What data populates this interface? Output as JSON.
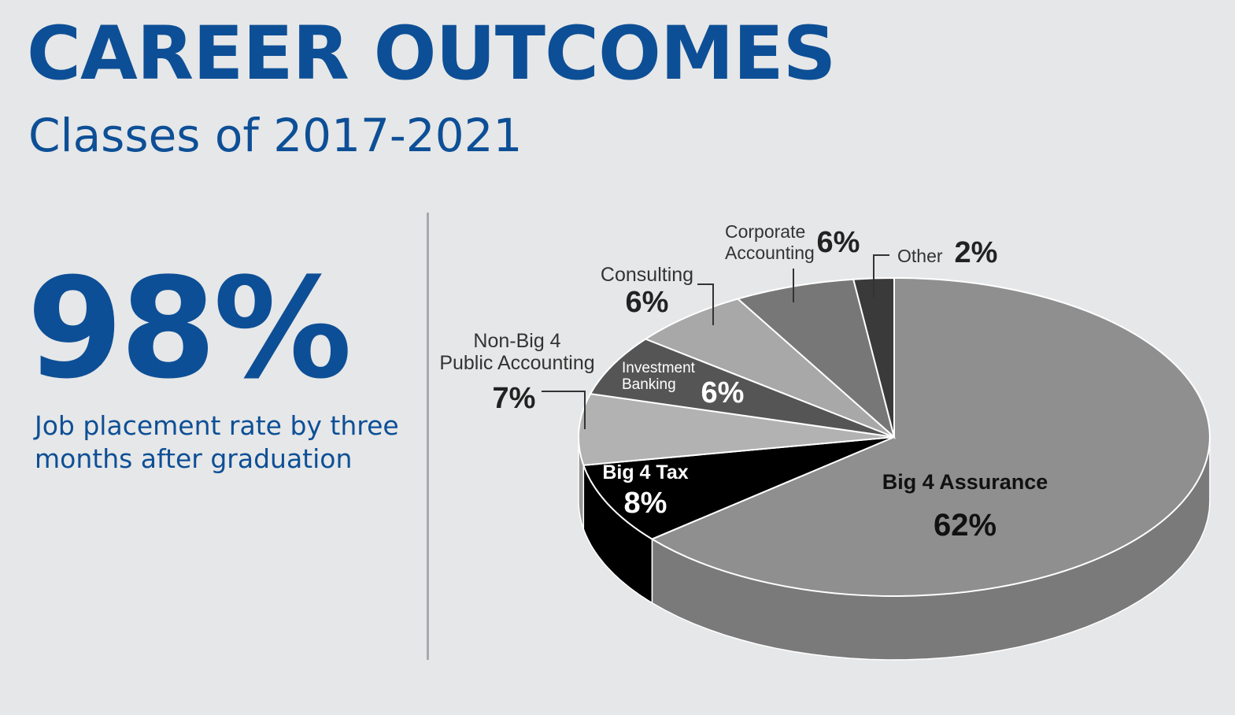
{
  "header": {
    "title": "CAREER OUTCOMES",
    "subtitle": "Classes of 2017-2021"
  },
  "stat": {
    "value": "98%",
    "caption": "Job placement rate by three months after graduation"
  },
  "chart_data": {
    "type": "pie",
    "style": "3d",
    "slices": [
      {
        "label": "Big 4 Assurance",
        "value": 62,
        "value_label": "62%",
        "color": "#8f8f8f"
      },
      {
        "label": "Big 4 Tax",
        "value": 8,
        "value_label": "8%",
        "color": "#000000"
      },
      {
        "label": "Non-Big 4 Public Accounting",
        "value": 7,
        "value_label": "7%",
        "color": "#b2b2b2"
      },
      {
        "label": "Investment Banking",
        "value": 6,
        "value_label": "6%",
        "color": "#555555"
      },
      {
        "label": "Consulting",
        "value": 6,
        "value_label": "6%",
        "color": "#a8a8a8"
      },
      {
        "label": "Corporate Accounting",
        "value": 6,
        "value_label": "6%",
        "color": "#777777"
      },
      {
        "label": "Other",
        "value": 2,
        "value_label": "2%",
        "color": "#3a3a3a"
      }
    ]
  }
}
